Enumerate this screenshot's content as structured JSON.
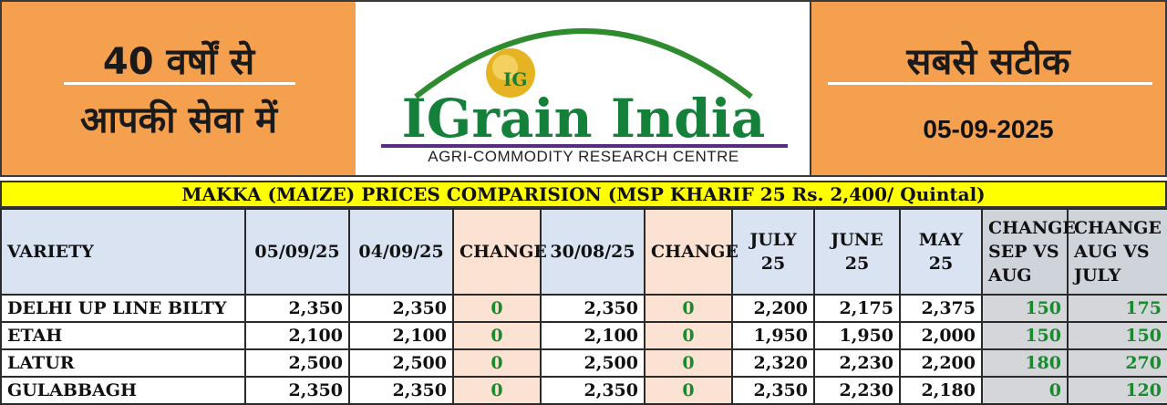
{
  "banner": {
    "left_line1": "40 वर्षों से",
    "left_line2": "आपकी सेवा में",
    "logo_text": "IGrain India",
    "logo_emblem": "IG",
    "logo_subtitle": "AGRI-COMMODITY RESEARCH CENTRE",
    "right_line1": "सबसे सटीक",
    "date": "05-09-2025"
  },
  "table_title": "MAKKA (MAIZE) PRICES COMPARISION (MSP KHARIF 25 Rs. 2,400/ Quintal)",
  "headers": [
    "VARIETY",
    "05/09/25",
    "04/09/25",
    "CHANGE",
    "30/08/25",
    "CHANGE",
    "JULY 25",
    "JUNE 25",
    "MAY 25",
    "CHANGE SEP VS AUG",
    "CHANGE AUG VS JULY"
  ],
  "rows": [
    [
      "DELHI UP LINE BILTY",
      "2,350",
      "2,350",
      "0",
      "2,350",
      "0",
      "2,200",
      "2,175",
      "2,375",
      "150",
      "175"
    ],
    [
      "ETAH",
      "2,100",
      "2,100",
      "0",
      "2,100",
      "0",
      "1,950",
      "1,950",
      "2,000",
      "150",
      "150"
    ],
    [
      "LATUR",
      "2,500",
      "2,500",
      "0",
      "2,500",
      "0",
      "2,320",
      "2,230",
      "2,200",
      "180",
      "270"
    ],
    [
      "GULABBAGH",
      "2,350",
      "2,350",
      "0",
      "2,350",
      "0",
      "2,350",
      "2,230",
      "2,180",
      "0",
      "120"
    ]
  ],
  "colors": {
    "banner_orange": "#f5a04f",
    "title_yellow": "#ffff00",
    "header_blue": "#d9e3f2",
    "change_peach": "#fbe2d2",
    "grey_cell": "#d4d6d9",
    "positive_green": "#1a8a2e",
    "brand_green": "#15803a",
    "brand_purple": "#5b2c83",
    "arc_green": "#2e8b2e",
    "emblem_gold": "#e6b422"
  }
}
